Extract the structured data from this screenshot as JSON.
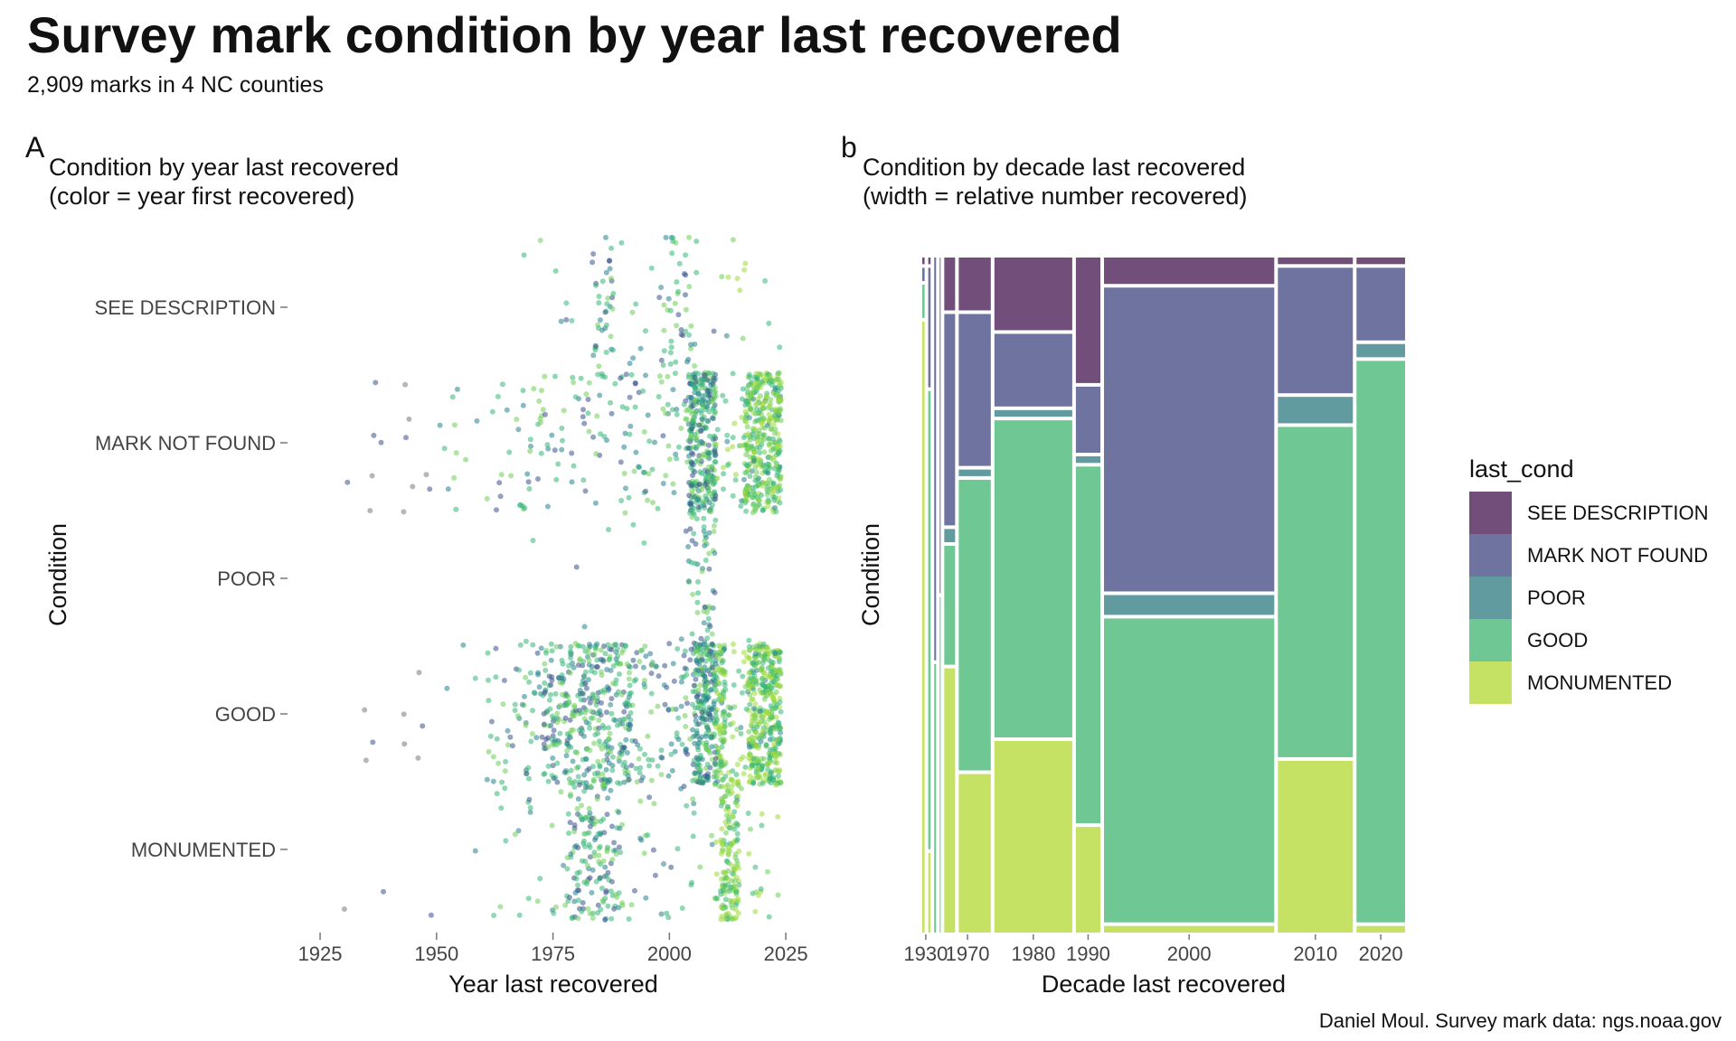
{
  "title": "Survey mark condition by year last recovered",
  "subtitle": "2,909 marks in 4 NC counties",
  "caption": "Daniel Moul. Survey mark data: ngs.noaa.gov",
  "panel_a": {
    "tag": "A",
    "title_line1": "Condition by year last recovered",
    "title_line2": "(color = year first recovered)",
    "xlabel": "Year last recovered",
    "ylabel": "Condition"
  },
  "panel_b": {
    "tag": "b",
    "title_line1": "Condition by decade last recovered",
    "title_line2": "(width = relative number recovered)",
    "xlabel": "Decade last recovered",
    "ylabel": "Condition"
  },
  "legend": {
    "title": "last_cond",
    "items": [
      {
        "label": "SEE DESCRIPTION",
        "color": "#724f7b"
      },
      {
        "label": "MARK NOT FOUND",
        "color": "#6f739f"
      },
      {
        "label": "POOR",
        "color": "#619b9f"
      },
      {
        "label": "GOOD",
        "color": "#6fc793"
      },
      {
        "label": "MONUMENTED",
        "color": "#c6e264"
      }
    ]
  },
  "chart_data": [
    {
      "type": "scatter",
      "panel": "A",
      "title": "Condition by year last recovered",
      "xlabel": "Year last recovered",
      "ylabel": "Condition",
      "xlim": [
        1918,
        2031
      ],
      "xticks": [
        1925,
        1950,
        1975,
        2000,
        2025
      ],
      "categories": [
        "SEE DESCRIPTION",
        "MARK NOT FOUND",
        "POOR",
        "GOOD",
        "MONUMENTED"
      ],
      "color_encoding": "year first recovered",
      "point_alpha": 0.55,
      "clusters": [
        {
          "category": "SEE DESCRIPTION",
          "x_range": [
            1961,
            2024
          ],
          "count": 120,
          "dense": [
            [
              1983,
              1988
            ],
            [
              1998,
              2006
            ]
          ]
        },
        {
          "category": "MARK NOT FOUND",
          "x_range": [
            1919,
            2024
          ],
          "count": 900,
          "dense": [
            [
              2004,
              2010
            ],
            [
              2016,
              2024
            ]
          ]
        },
        {
          "category": "POOR",
          "x_range": [
            1966,
            2022
          ],
          "count": 70,
          "dense": [
            [
              2004,
              2010
            ]
          ]
        },
        {
          "category": "GOOD",
          "x_range": [
            1932,
            2024
          ],
          "count": 1300,
          "dense": [
            [
              1973,
              1992
            ],
            [
              2005,
              2012
            ],
            [
              2017,
              2024
            ]
          ]
        },
        {
          "category": "MONUMENTED",
          "x_range": [
            1919,
            2024
          ],
          "count": 420,
          "dense": [
            [
              1978,
              1990
            ],
            [
              2011,
              2015
            ]
          ]
        }
      ]
    },
    {
      "type": "mosaic",
      "panel": "b",
      "title": "Condition by decade last recovered",
      "xlabel": "Decade last recovered",
      "ylabel": "Condition",
      "x_tick_labels": [
        "1930",
        "1970",
        "1980",
        "1990",
        "2000",
        "2010",
        "2020"
      ],
      "series_order_top_to_bottom": [
        "SEE DESCRIPTION",
        "MARK NOT FOUND",
        "POOR",
        "GOOD",
        "MONUMENTED"
      ],
      "columns": [
        {
          "decade": "1920",
          "width_frac": 0.005,
          "fractions": [
            0.01,
            0.02,
            0.0,
            0.05,
            0.92
          ]
        },
        {
          "decade": "1930",
          "width_frac": 0.005,
          "fractions": [
            0.01,
            0.18,
            0.0,
            0.69,
            0.12
          ]
        },
        {
          "decade": "1940",
          "width_frac": 0.004,
          "fractions": [
            0.0,
            0.6,
            0.0,
            0.4,
            0.0
          ]
        },
        {
          "decade": "1950",
          "width_frac": 0.002,
          "fractions": [
            0.0,
            0.5,
            0.0,
            0.5,
            0.0
          ]
        },
        {
          "decade": "1960",
          "width_frac": 0.023,
          "fractions": [
            0.08,
            0.32,
            0.02,
            0.18,
            0.4
          ]
        },
        {
          "decade": "1970",
          "width_frac": 0.068,
          "fractions": [
            0.08,
            0.23,
            0.01,
            0.44,
            0.24
          ]
        },
        {
          "decade": "1980",
          "width_frac": 0.165,
          "fractions": [
            0.11,
            0.11,
            0.01,
            0.48,
            0.29
          ]
        },
        {
          "decade": "1990",
          "width_frac": 0.052,
          "fractions": [
            0.19,
            0.1,
            0.01,
            0.54,
            0.16
          ]
        },
        {
          "decade": "2000",
          "width_frac": 0.361,
          "fractions": [
            0.04,
            0.46,
            0.03,
            0.46,
            0.01
          ]
        },
        {
          "decade": "2010",
          "width_frac": 0.159,
          "fractions": [
            0.01,
            0.19,
            0.04,
            0.5,
            0.26
          ]
        },
        {
          "decade": "2020",
          "width_frac": 0.103,
          "fractions": [
            0.01,
            0.11,
            0.02,
            0.85,
            0.01
          ]
        }
      ]
    }
  ]
}
